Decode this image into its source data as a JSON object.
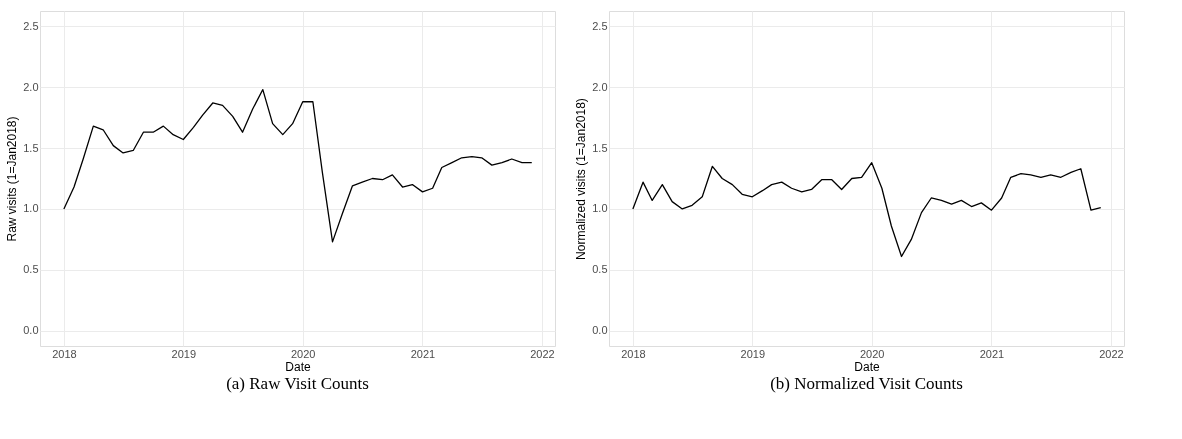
{
  "chart_data": [
    {
      "type": "line",
      "title": "(a) Raw Visit Counts",
      "xlabel": "Date",
      "ylabel": "Raw visits (1=Jan2018)",
      "x": [
        "2018-01",
        "2018-02",
        "2018-03",
        "2018-04",
        "2018-05",
        "2018-06",
        "2018-07",
        "2018-08",
        "2018-09",
        "2018-10",
        "2018-11",
        "2018-12",
        "2019-01",
        "2019-02",
        "2019-03",
        "2019-04",
        "2019-05",
        "2019-06",
        "2019-07",
        "2019-08",
        "2019-09",
        "2019-10",
        "2019-11",
        "2019-12",
        "2020-01",
        "2020-02",
        "2020-03",
        "2020-04",
        "2020-05",
        "2020-06",
        "2020-07",
        "2020-08",
        "2020-09",
        "2020-10",
        "2020-11",
        "2020-12",
        "2021-01",
        "2021-02",
        "2021-03",
        "2021-04",
        "2021-05",
        "2021-06",
        "2021-07",
        "2021-08",
        "2021-09",
        "2021-10",
        "2021-11",
        "2021-12"
      ],
      "series": [
        {
          "color": "#000000",
          "values": [
            1.0,
            1.18,
            1.41,
            1.68,
            1.65,
            1.52,
            1.46,
            1.48,
            1.63,
            1.63,
            1.68,
            1.61,
            1.57,
            1.67,
            1.77,
            1.87,
            1.85,
            1.76,
            1.63,
            1.82,
            1.98,
            1.7,
            1.61,
            1.7,
            1.88,
            1.88,
            1.3,
            0.73,
            0.96,
            1.19,
            1.22,
            1.25,
            1.24,
            1.28,
            1.18,
            1.2,
            1.14,
            1.17,
            1.34,
            1.38,
            1.42,
            1.43,
            1.42,
            1.36,
            1.38,
            1.41,
            1.38,
            1.38
          ]
        }
      ],
      "xlim": [
        "2017-10-20",
        "2022-02-10"
      ],
      "xticks": [
        {
          "value": "2018",
          "label": "2018"
        },
        {
          "value": "2019",
          "label": "2019"
        },
        {
          "value": "2020",
          "label": "2020"
        },
        {
          "value": "2021",
          "label": "2021"
        },
        {
          "value": "2022",
          "label": "2022"
        }
      ],
      "ylim": [
        -0.125,
        2.625
      ],
      "yticks": [
        {
          "value": 0,
          "label": "0.0"
        },
        {
          "value": 0.5,
          "label": "0.5"
        },
        {
          "value": 1,
          "label": "1.0"
        },
        {
          "value": 1.5,
          "label": "1.5"
        },
        {
          "value": 2,
          "label": "2.0"
        },
        {
          "value": 2.5,
          "label": "2.5"
        }
      ],
      "grid": true
    },
    {
      "type": "line",
      "title": "(b) Normalized Visit Counts",
      "xlabel": "Date",
      "ylabel": "Normalized visits (1=Jan2018)",
      "x": [
        "2018-01",
        "2018-02",
        "2018-03",
        "2018-04",
        "2018-05",
        "2018-06",
        "2018-07",
        "2018-08",
        "2018-09",
        "2018-10",
        "2018-11",
        "2018-12",
        "2019-01",
        "2019-02",
        "2019-03",
        "2019-04",
        "2019-05",
        "2019-06",
        "2019-07",
        "2019-08",
        "2019-09",
        "2019-10",
        "2019-11",
        "2019-12",
        "2020-01",
        "2020-02",
        "2020-03",
        "2020-04",
        "2020-05",
        "2020-06",
        "2020-07",
        "2020-08",
        "2020-09",
        "2020-10",
        "2020-11",
        "2020-12",
        "2021-01",
        "2021-02",
        "2021-03",
        "2021-04",
        "2021-05",
        "2021-06",
        "2021-07",
        "2021-08",
        "2021-09",
        "2021-10",
        "2021-11",
        "2021-12"
      ],
      "series": [
        {
          "color": "#000000",
          "values": [
            1.0,
            1.22,
            1.07,
            1.2,
            1.06,
            1.0,
            1.03,
            1.1,
            1.35,
            1.25,
            1.2,
            1.12,
            1.1,
            1.15,
            1.2,
            1.22,
            1.17,
            1.14,
            1.16,
            1.24,
            1.24,
            1.16,
            1.25,
            1.26,
            1.38,
            1.17,
            0.86,
            0.61,
            0.75,
            0.97,
            1.09,
            1.07,
            1.04,
            1.07,
            1.02,
            1.05,
            0.99,
            1.09,
            1.26,
            1.29,
            1.28,
            1.26,
            1.28,
            1.26,
            1.3,
            1.33,
            0.99,
            1.01
          ]
        }
      ],
      "xlim": [
        "2017-10-20",
        "2022-02-10"
      ],
      "xticks": [
        {
          "value": "2018",
          "label": "2018"
        },
        {
          "value": "2019",
          "label": "2019"
        },
        {
          "value": "2020",
          "label": "2020"
        },
        {
          "value": "2021",
          "label": "2021"
        },
        {
          "value": "2022",
          "label": "2022"
        }
      ],
      "ylim": [
        -0.125,
        2.625
      ],
      "yticks": [
        {
          "value": 0,
          "label": "0.0"
        },
        {
          "value": 0.5,
          "label": "0.5"
        },
        {
          "value": 1,
          "label": "1.0"
        },
        {
          "value": 1.5,
          "label": "1.5"
        },
        {
          "value": 2,
          "label": "2.0"
        },
        {
          "value": 2.5,
          "label": "2.5"
        }
      ],
      "grid": true
    }
  ]
}
